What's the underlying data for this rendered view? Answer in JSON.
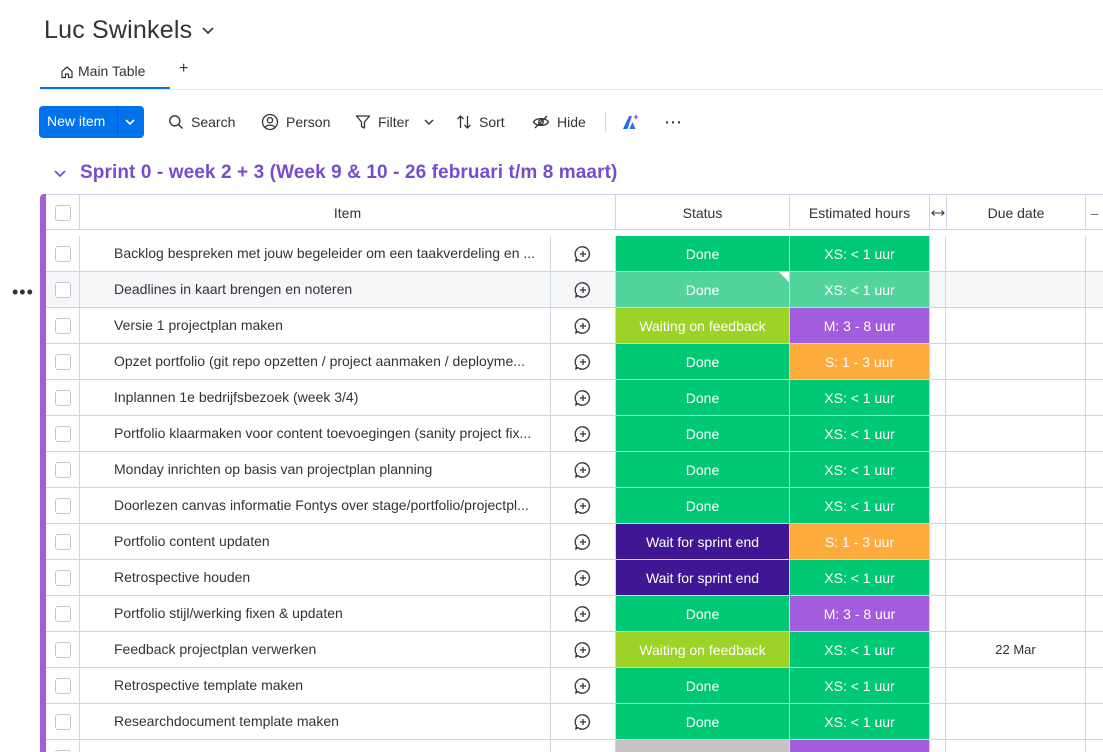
{
  "board": {
    "title": "Luc Swinkels"
  },
  "tabs": {
    "main": "Main Table",
    "add": "+"
  },
  "toolbar": {
    "new_item": "New item",
    "search": "Search",
    "person": "Person",
    "filter": "Filter",
    "sort": "Sort",
    "hide": "Hide",
    "more": "⋯"
  },
  "group": {
    "title": "Sprint 0 - week 2 + 3 (Week 9 & 10 - 26 februari t/m 8 maart)",
    "color": "#a25ddc"
  },
  "columns": {
    "item": "Item",
    "status": "Status",
    "estimated_hours": "Estimated hours",
    "due_date": "Due date"
  },
  "colors": {
    "done": "#00c875",
    "done_hover": "#53d49d",
    "waiting_feedback": "#9cd326",
    "wait_sprint_end": "#401694",
    "xs": "#00c875",
    "s": "#fdab3d",
    "m": "#a25ddc",
    "accent": "#0073ea",
    "group_title": "#784bd1"
  },
  "rows": [
    {
      "name": "Backlog bespreken met jouw begeleider om een taakverdeling en ...",
      "status": "Done",
      "estimate": "XS: < 1 uur",
      "due": ""
    },
    {
      "name": "Deadlines in kaart brengen en noteren",
      "status": "Done",
      "estimate": "XS: < 1 uur",
      "due": ""
    },
    {
      "name": "Versie 1 projectplan maken",
      "status": "Waiting on feedback",
      "estimate": "M: 3 - 8 uur",
      "due": ""
    },
    {
      "name": "Opzet portfolio (git repo opzetten / project aanmaken / deployme...",
      "status": "Done",
      "estimate": "S: 1 - 3 uur",
      "due": ""
    },
    {
      "name": "Inplannen 1e bedrijfsbezoek (week 3/4)",
      "status": "Done",
      "estimate": "XS: < 1 uur",
      "due": ""
    },
    {
      "name": "Portfolio klaarmaken voor content toevoegingen (sanity project fix...",
      "status": "Done",
      "estimate": "XS: < 1 uur",
      "due": ""
    },
    {
      "name": "Monday inrichten op basis van projectplan planning",
      "status": "Done",
      "estimate": "XS: < 1 uur",
      "due": ""
    },
    {
      "name": "Doorlezen canvas informatie Fontys over stage/portfolio/projectpl...",
      "status": "Done",
      "estimate": "XS: < 1 uur",
      "due": ""
    },
    {
      "name": "Portfolio content updaten",
      "status": "Wait for sprint end",
      "estimate": "S: 1 - 3 uur",
      "due": ""
    },
    {
      "name": "Retrospective houden",
      "status": "Wait for sprint end",
      "estimate": "XS: < 1 uur",
      "due": ""
    },
    {
      "name": "Portfolio stijl/werking fixen & updaten",
      "status": "Done",
      "estimate": "M: 3 - 8 uur",
      "due": ""
    },
    {
      "name": "Feedback projectplan verwerken",
      "status": "Waiting on feedback",
      "estimate": "XS: < 1 uur",
      "due": "22 Mar"
    },
    {
      "name": "Retrospective template maken",
      "status": "Done",
      "estimate": "XS: < 1 uur",
      "due": ""
    },
    {
      "name": "Researchdocument template maken",
      "status": "Done",
      "estimate": "XS: < 1 uur",
      "due": ""
    }
  ]
}
